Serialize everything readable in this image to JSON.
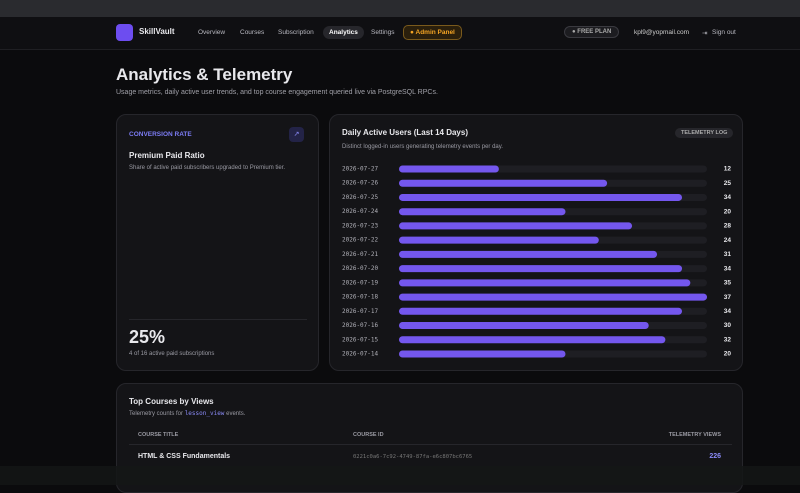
{
  "nav": {
    "brand": "SkillVault",
    "links": [
      "Overview",
      "Courses",
      "Subscription",
      "Analytics",
      "Settings"
    ],
    "admin": "Admin Panel",
    "plan": "FREE PLAN",
    "email": "kpl9@yopmail.com",
    "signout": "Sign out"
  },
  "header": {
    "title": "Analytics & Telemetry",
    "subtitle": "Usage metrics, daily active user trends, and top course engagement queried live via PostgreSQL RPCs."
  },
  "conversion": {
    "label": "CONVERSION RATE",
    "title": "Premium Paid Ratio",
    "description": "Share of active paid subscribers upgraded to Premium tier.",
    "value": "25%",
    "detail": "4 of 16 active paid subscriptions"
  },
  "chart_data": {
    "type": "hbar",
    "title": "Daily Active Users (Last 14 Days)",
    "badge": "TELEMETRY LOG",
    "subtitle": "Distinct logged-in users generating telemetry events per day.",
    "categories": [
      "2026-07-27",
      "2026-07-26",
      "2026-07-25",
      "2026-07-24",
      "2026-07-23",
      "2026-07-22",
      "2026-07-21",
      "2026-07-20",
      "2026-07-19",
      "2026-07-18",
      "2026-07-17",
      "2026-07-16",
      "2026-07-15",
      "2026-07-14"
    ],
    "values": [
      12,
      25,
      34,
      20,
      28,
      24,
      31,
      34,
      35,
      37,
      34,
      30,
      32,
      20
    ],
    "color": "#7457ee"
  },
  "courses": {
    "title": "Top Courses by Views",
    "note": [
      "Telemetry counts for ",
      "lesson_view",
      " events."
    ],
    "columns": [
      "COURSE TITLE",
      "COURSE ID",
      "TELEMETRY VIEWS"
    ],
    "rows": [
      [
        "HTML & CSS Fundamentals",
        "0221c0a6-7c92-4749-87fa-e6c807bc6765",
        226
      ]
    ]
  }
}
